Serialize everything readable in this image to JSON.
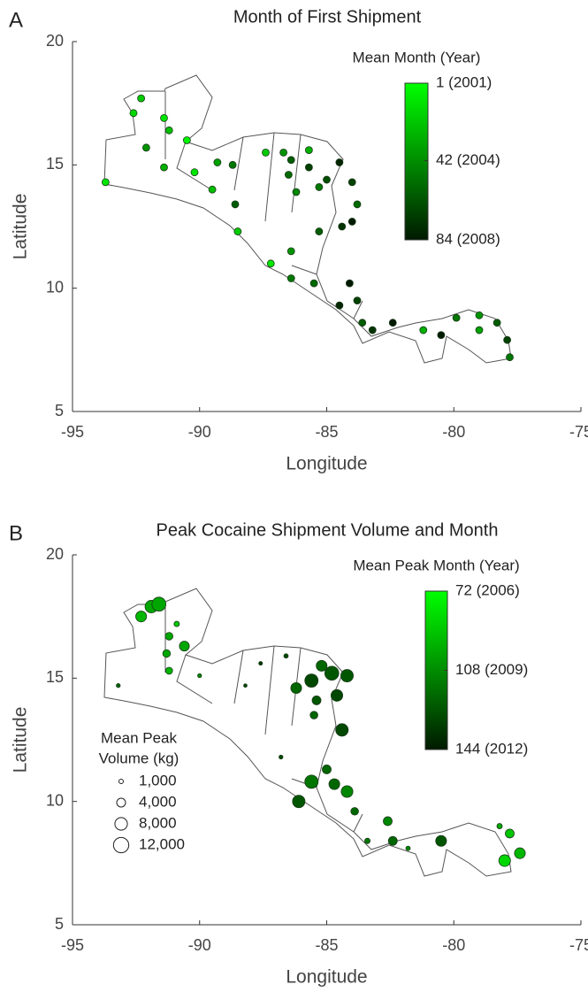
{
  "chart_data": [
    {
      "type": "scatter",
      "panel": "A",
      "title": "Month of First Shipment",
      "xlabel": "Longitude",
      "ylabel": "Latitude",
      "xlim": [
        -95,
        -75
      ],
      "xticks": [
        -95,
        -90,
        -85,
        -80,
        -75
      ],
      "ylim": [
        5,
        20
      ],
      "yticks": [
        5,
        10,
        15,
        20
      ],
      "colorbar_title": "Mean Month (Year)",
      "clim": [
        1,
        84
      ],
      "colormap": [
        "#00ff00",
        "#001a00"
      ],
      "colorbar_ticks": [
        {
          "value": 1,
          "label": "1 (2001)"
        },
        {
          "value": 42,
          "label": "42 (2004)"
        },
        {
          "value": 84,
          "label": "84 (2008)"
        }
      ],
      "x": [
        -93.7,
        -92.3,
        -92.6,
        -91.4,
        -91.2,
        -92.1,
        -90.5,
        -91.4,
        -90.2,
        -89.3,
        -88.7,
        -88.5,
        -87.2,
        -86.7,
        -86.4,
        -86.5,
        -86.2,
        -85.7,
        -85.7,
        -85.3,
        -85.0,
        -84.5,
        -84.0,
        -83.8,
        -84.4,
        -84.0,
        -85.3,
        -86.4,
        -86.4,
        -85.5,
        -84.1,
        -83.8,
        -84.5,
        -83.6,
        -83.2,
        -82.4,
        -80.5,
        -81.2,
        -79.9,
        -79.0,
        -78.3,
        -77.9,
        -77.8,
        -79.0,
        -88.6,
        -89.5,
        -87.4
      ],
      "y": [
        14.3,
        17.7,
        17.1,
        16.9,
        16.4,
        15.7,
        16.0,
        14.9,
        14.7,
        15.1,
        15.0,
        12.3,
        11.0,
        15.5,
        15.2,
        14.6,
        13.9,
        14.9,
        15.6,
        14.1,
        14.4,
        15.1,
        14.3,
        13.4,
        12.5,
        12.7,
        12.3,
        11.5,
        10.4,
        10.2,
        10.2,
        9.5,
        9.3,
        8.6,
        8.3,
        8.6,
        8.1,
        8.3,
        8.8,
        8.9,
        8.6,
        7.9,
        7.2,
        8.3,
        13.4,
        14.0,
        15.5
      ],
      "color_values": [
        10,
        20,
        15,
        10,
        25,
        40,
        5,
        30,
        10,
        35,
        50,
        20,
        10,
        40,
        60,
        55,
        45,
        70,
        30,
        50,
        65,
        80,
        70,
        55,
        75,
        84,
        60,
        40,
        50,
        55,
        84,
        70,
        80,
        60,
        75,
        84,
        84,
        30,
        50,
        40,
        60,
        70,
        50,
        35,
        60,
        25,
        20
      ]
    },
    {
      "type": "bubble",
      "panel": "B",
      "title": "Peak Cocaine Shipment Volume and Month",
      "xlabel": "Longitude",
      "ylabel": "Latitude",
      "xlim": [
        -95,
        -75
      ],
      "xticks": [
        -95,
        -90,
        -85,
        -80,
        -75
      ],
      "ylim": [
        5,
        20
      ],
      "yticks": [
        5,
        10,
        15,
        20
      ],
      "colorbar_title": "Mean Peak Month (Year)",
      "clim": [
        72,
        144
      ],
      "colormap": [
        "#00ff00",
        "#001a00"
      ],
      "colorbar_ticks": [
        {
          "value": 72,
          "label": "72 (2006)"
        },
        {
          "value": 108,
          "label": "108 (2009)"
        },
        {
          "value": 144,
          "label": "144 (2012)"
        }
      ],
      "size_legend": {
        "title": [
          "Mean Peak",
          "Volume (kg)"
        ],
        "values": [
          1000,
          4000,
          8000,
          12000
        ],
        "labels": [
          "1,000",
          "4,000",
          "8,000",
          "12,000"
        ]
      },
      "x": [
        -91.9,
        -92.3,
        -91.6,
        -90.9,
        -91.2,
        -90.6,
        -91.3,
        -91.2,
        -93.2,
        -90.0,
        -88.2,
        -86.2,
        -85.6,
        -84.8,
        -85.2,
        -84.2,
        -84.6,
        -85.4,
        -84.4,
        -85.5,
        -85.0,
        -85.6,
        -84.7,
        -84.2,
        -86.1,
        -83.9,
        -82.6,
        -82.4,
        -80.5,
        -78.2,
        -77.8,
        -77.4,
        -78.0,
        -86.8,
        -87.6,
        -86.6,
        -83.4,
        -81.8
      ],
      "y": [
        17.9,
        17.5,
        18.0,
        17.2,
        16.7,
        16.3,
        16.0,
        15.3,
        14.7,
        15.1,
        14.7,
        14.6,
        14.9,
        15.2,
        15.5,
        15.1,
        14.3,
        14.1,
        12.9,
        13.5,
        11.3,
        10.8,
        10.7,
        10.4,
        10.0,
        9.6,
        9.2,
        8.4,
        8.4,
        9.0,
        8.7,
        7.9,
        7.6,
        11.8,
        15.6,
        15.9,
        8.4,
        8.1
      ],
      "color_values": [
        100,
        95,
        100,
        90,
        100,
        100,
        100,
        95,
        120,
        110,
        130,
        120,
        130,
        125,
        120,
        125,
        130,
        125,
        130,
        120,
        120,
        115,
        120,
        110,
        125,
        120,
        110,
        120,
        125,
        100,
        90,
        95,
        85,
        130,
        135,
        130,
        115,
        110
      ],
      "sizes": [
        8000,
        6000,
        10000,
        1500,
        3000,
        5000,
        3000,
        2500,
        800,
        800,
        600,
        6000,
        9000,
        10000,
        6000,
        8000,
        7000,
        4000,
        8000,
        3000,
        4000,
        9000,
        6000,
        7000,
        8000,
        3000,
        4000,
        4000,
        6000,
        1500,
        4000,
        6000,
        7000,
        800,
        700,
        1000,
        1500,
        1000
      ]
    }
  ]
}
